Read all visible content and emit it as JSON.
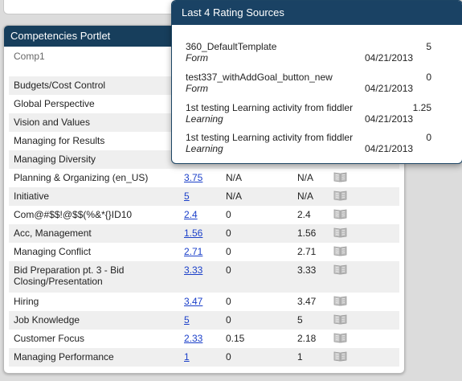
{
  "portlet": {
    "title": "Competencies Portlet",
    "selected_comp": "Comp1",
    "rows": [
      {
        "name": "Budgets/Cost Control",
        "rating": "",
        "c2": "",
        "c3": ""
      },
      {
        "name": "Global Perspective",
        "rating": "",
        "c2": "",
        "c3": ""
      },
      {
        "name": "Vision and Values",
        "rating": "",
        "c2": "",
        "c3": ""
      },
      {
        "name": "Managing for Results",
        "rating": "",
        "c2": "",
        "c3": ""
      },
      {
        "name": "Managing Diversity",
        "rating": "",
        "c2": "",
        "c3": ""
      },
      {
        "name": "Planning & Organizing (en_US)",
        "rating": "3.75",
        "c2": "N/A",
        "c3": "N/A"
      },
      {
        "name": "Initiative",
        "rating": "5",
        "c2": "N/A",
        "c3": "N/A"
      },
      {
        "name": "Com@#$$!@$$(%&*{}ID10",
        "rating": "2.4",
        "c2": "0",
        "c3": "2.4"
      },
      {
        "name": "Acc, Management",
        "rating": "1.56",
        "c2": "0",
        "c3": "1.56"
      },
      {
        "name": "Managing Conflict",
        "rating": "2.71",
        "c2": "0",
        "c3": "2.71"
      },
      {
        "name": "Bid Preparation pt. 3 - Bid Closing/Presentation",
        "rating": "3.33",
        "c2": "0",
        "c3": "3.33"
      },
      {
        "name": "Hiring",
        "rating": "3.47",
        "c2": "0",
        "c3": "3.47"
      },
      {
        "name": "Job Knowledge",
        "rating": "5",
        "c2": "0",
        "c3": "5"
      },
      {
        "name": "Customer Focus",
        "rating": "2.33",
        "c2": "0.15",
        "c3": "2.18"
      },
      {
        "name": "Managing Performance",
        "rating": "1",
        "c2": "0",
        "c3": "1"
      }
    ]
  },
  "popup": {
    "title": "Last 4 Rating Sources",
    "sources": [
      {
        "name": "360_DefaultTemplate",
        "value": "5",
        "type": "Form",
        "date": "04/21/2013"
      },
      {
        "name": "test337_withAddGoal_button_new",
        "value": "0",
        "type": "Form",
        "date": "04/21/2013"
      },
      {
        "name": "1st testing Learning activity from fiddler",
        "value": "1.25",
        "type": "Learning",
        "date": "04/21/2013"
      },
      {
        "name": "1st testing Learning activity from fiddler",
        "value": "0",
        "type": "Learning",
        "date": "04/21/2013"
      }
    ]
  },
  "icons": {
    "row_action": "book-icon"
  },
  "colors": {
    "header": "#173e5c",
    "popup_header": "#1a4264",
    "link": "#1a3fc9",
    "row_alt": "#efefef"
  }
}
